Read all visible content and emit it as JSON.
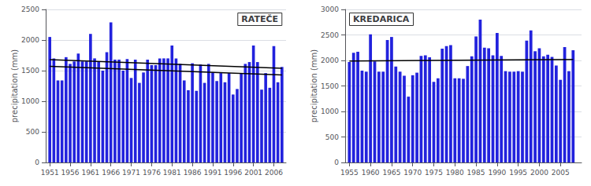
{
  "chart_data": [
    {
      "type": "bar",
      "title": "RATEČE",
      "ylabel": "precipitation (mm)",
      "x": [
        1951,
        1952,
        1953,
        1954,
        1955,
        1956,
        1957,
        1958,
        1959,
        1960,
        1961,
        1962,
        1963,
        1964,
        1965,
        1966,
        1967,
        1968,
        1969,
        1970,
        1971,
        1972,
        1973,
        1974,
        1975,
        1976,
        1977,
        1978,
        1979,
        1980,
        1981,
        1982,
        1983,
        1984,
        1985,
        1986,
        1987,
        1988,
        1989,
        1990,
        1991,
        1992,
        1993,
        1994,
        1995,
        1996,
        1997,
        1998,
        1999,
        2000,
        2001,
        2002,
        2003,
        2004,
        2005,
        2006,
        2007,
        2008
      ],
      "series": [
        {
          "type": "bar",
          "color": "#2222dd",
          "values": [
            2050,
            1700,
            1340,
            1340,
            1720,
            1610,
            1650,
            1780,
            1650,
            1650,
            2100,
            1700,
            1650,
            1500,
            1800,
            2290,
            1680,
            1680,
            1500,
            1690,
            1380,
            1680,
            1300,
            1470,
            1680,
            1590,
            1590,
            1700,
            1700,
            1700,
            1910,
            1700,
            1610,
            1340,
            1180,
            1620,
            1170,
            1600,
            1300,
            1610,
            1470,
            1330,
            1460,
            1310,
            1460,
            1110,
            1200,
            1460,
            1610,
            1640,
            1910,
            1640,
            1190,
            1460,
            1220,
            1900,
            1310,
            1560
          ]
        },
        {
          "type": "line",
          "color": "#000000",
          "x": [
            1951,
            2008
          ],
          "values": [
            1680,
            1540
          ]
        },
        {
          "type": "line",
          "color": "#000000",
          "x": [
            1951,
            2008
          ],
          "values": [
            1570,
            1430
          ]
        }
      ],
      "xlim": [
        1950.0,
        2009.0
      ],
      "xticks": [
        1951,
        1956,
        1961,
        1966,
        1971,
        1976,
        1981,
        1986,
        1991,
        1996,
        2001,
        2006
      ],
      "ylim": [
        0,
        2500
      ],
      "yticks": [
        0,
        500,
        1000,
        1500,
        2000,
        2500
      ],
      "grid": true
    },
    {
      "type": "bar",
      "title": "KREDARICA",
      "ylabel": "precipitation (mm)",
      "x": [
        1955,
        1956,
        1957,
        1958,
        1959,
        1960,
        1961,
        1962,
        1963,
        1964,
        1965,
        1966,
        1967,
        1968,
        1969,
        1970,
        1971,
        1972,
        1973,
        1974,
        1975,
        1976,
        1977,
        1978,
        1979,
        1980,
        1981,
        1982,
        1983,
        1984,
        1985,
        1986,
        1987,
        1988,
        1989,
        1990,
        1991,
        1992,
        1993,
        1994,
        1995,
        1996,
        1997,
        1998,
        1999,
        2000,
        2001,
        2002,
        2003,
        2004,
        2005,
        2006,
        2007,
        2008
      ],
      "series": [
        {
          "type": "bar",
          "color": "#2222dd",
          "values": [
            1970,
            2150,
            2170,
            1800,
            1780,
            2510,
            1980,
            1780,
            1780,
            2400,
            2460,
            1880,
            1780,
            1700,
            1290,
            1710,
            1760,
            2090,
            2100,
            2060,
            1580,
            1650,
            2230,
            2280,
            2300,
            1650,
            1650,
            1640,
            1890,
            2080,
            2470,
            2800,
            2250,
            2240,
            2100,
            2540,
            2090,
            1790,
            1780,
            1780,
            1790,
            1780,
            2390,
            2590,
            2180,
            2240,
            2080,
            2110,
            2070,
            1900,
            1620,
            2260,
            1790,
            2200
          ]
        },
        {
          "type": "line",
          "color": "#000000",
          "x": [
            1955,
            2008
          ],
          "values": [
            1990,
            2020
          ]
        }
      ],
      "xlim": [
        1954.0,
        2010.0
      ],
      "xticks": [
        1955,
        1960,
        1965,
        1970,
        1975,
        1980,
        1985,
        1990,
        1995,
        2000,
        2005
      ],
      "ylim": [
        0,
        3000
      ],
      "yticks": [
        0,
        500,
        1000,
        1500,
        2000,
        2500,
        3000
      ],
      "grid": true
    }
  ]
}
